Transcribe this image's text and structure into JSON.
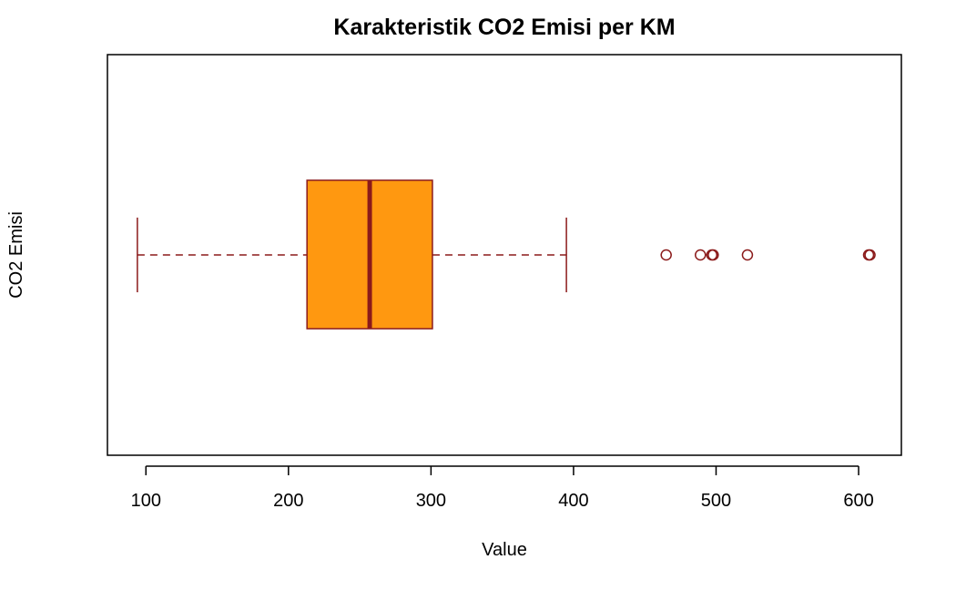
{
  "chart_data": {
    "type": "boxplot",
    "orientation": "horizontal",
    "title": "Karakteristik CO2 Emisi per KM",
    "xlabel": "Value",
    "ylabel": "CO2 Emisi",
    "xlim": [
      73,
      630
    ],
    "ticks": [
      100,
      200,
      300,
      400,
      500,
      600
    ],
    "tick_labels": [
      "100",
      "200",
      "300",
      "400",
      "500",
      "600"
    ],
    "grid": false,
    "box": {
      "whisker_low": 94,
      "q1": 213,
      "median": 257,
      "q3": 301,
      "whisker_high": 395
    },
    "outliers": [
      465,
      489,
      497,
      498,
      522,
      607,
      608
    ],
    "colors": {
      "box_fill": "#ff9810",
      "border": "#8b1a1a",
      "median": "#8b1a1a",
      "axis": "#000000"
    }
  }
}
